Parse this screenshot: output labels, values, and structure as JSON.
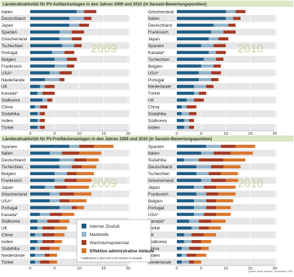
{
  "colors": {
    "zins": "#1f5d86",
    "markt": "#93b4c9",
    "wachstum": "#a33a24",
    "ablaeufe": "#d9752c",
    "header_bg": "#d9e6c4",
    "row_shade": "#e6e6e6",
    "year_text": "#c9d49f"
  },
  "titles": {
    "top": "Länderattraktivität für PV-Aufdachanlagen in den Jahren 2009 und 2010 (in Sarasin-Bewertungspunkten)",
    "bottom": "Länderattraktivität für PV-Freiflächenanlagen in den Jahren 2009 und 2010 (in Sarasin-Bewertungspunkten)"
  },
  "legend": {
    "items": [
      "Interner Zinsfuß",
      "Marktreife",
      "Wachstumspotenzial",
      "Effektive administrative Abläufe"
    ],
    "note": "* Kalifornien in den USA und Ontario in Kanada"
  },
  "source": "Quelle: Bank Sarasin, November 2009",
  "chart_data": [
    {
      "type": "bar",
      "stacked": true,
      "orientation": "horizontal",
      "panel": "Aufdachanlagen",
      "year_label": "2009",
      "xlim": [
        0,
        20
      ],
      "xticks": [
        "0",
        "5",
        "10",
        "15",
        "20"
      ],
      "grid": true,
      "categories": [
        "Italien",
        "Deutschland",
        "Japan",
        "Spanien",
        "Griechenland",
        "Tschechien",
        "Portugal",
        "Belgien",
        "Frankreich",
        "USA*",
        "Niederlande",
        "UK",
        "Kanada*",
        "Südkorea",
        "China",
        "Südafrika",
        "Indien",
        "Türkei"
      ],
      "series": [
        {
          "name": "Interner Zinsfuß",
          "values": [
            9.5,
            8,
            8,
            6,
            6,
            6.5,
            4.5,
            5,
            5,
            4,
            3,
            2,
            1.5,
            2.5,
            1,
            1.5,
            1.5,
            1.5
          ]
        },
        {
          "name": "Marktreife",
          "values": [
            1.5,
            3,
            2,
            2.5,
            2.5,
            2.5,
            2.5,
            2.5,
            2.5,
            2,
            3,
            1,
            1,
            1,
            1,
            0.5,
            0.5,
            0.5
          ]
        },
        {
          "name": "Wachstumspotenzial",
          "values": [
            2.5,
            1.5,
            2,
            2.5,
            2,
            1.5,
            2,
            2,
            1.5,
            2.5,
            1,
            2,
            2.5,
            1,
            1.5,
            1,
            1,
            1
          ]
        },
        {
          "name": "Effektive administrative Abläufe",
          "values": [
            0,
            0,
            0,
            0,
            0,
            0,
            0,
            0,
            0,
            0,
            0,
            0,
            0,
            0,
            0,
            0,
            0,
            0
          ]
        }
      ]
    },
    {
      "type": "bar",
      "stacked": true,
      "orientation": "horizontal",
      "panel": "Aufdachanlagen",
      "year_label": "2010",
      "xlim": [
        0,
        20
      ],
      "xticks": [
        "0",
        "5",
        "10",
        "15",
        "20"
      ],
      "grid": true,
      "categories": [
        "Griechenland",
        "Italien",
        "Deutschland",
        "Frankreich",
        "Japan",
        "Spanien",
        "Kanada*",
        "Tschechien",
        "Belgien",
        "USA*",
        "Portugal",
        "Niederlande",
        "Türkei",
        "UK",
        "China",
        "Südafrika",
        "Südkorea",
        "Indien"
      ],
      "series": [
        {
          "name": "Interner Zinsfuß",
          "values": [
            10,
            10,
            7.5,
            7,
            6.5,
            5,
            6.5,
            5.5,
            5,
            4.5,
            4.5,
            3.5,
            3.5,
            2,
            1,
            1,
            1.5,
            1.5
          ]
        },
        {
          "name": "Marktreife",
          "values": [
            2,
            1.5,
            3,
            2.5,
            2,
            2.5,
            1.5,
            2.5,
            2.5,
            2.5,
            2.5,
            2.5,
            1,
            1.5,
            1,
            1.5,
            1,
            1
          ]
        },
        {
          "name": "Wachstumspotenzial",
          "values": [
            2,
            1.5,
            1.5,
            2.5,
            2,
            2.5,
            2,
            1.5,
            1.5,
            2,
            1.5,
            1.5,
            1.5,
            2,
            2,
            1.5,
            1,
            1
          ]
        },
        {
          "name": "Effektive administrative Abläufe",
          "values": [
            0,
            0,
            0,
            0,
            0,
            0,
            0,
            0,
            0,
            0,
            0,
            0,
            0,
            0,
            0,
            0,
            0,
            0
          ]
        }
      ]
    },
    {
      "type": "bar",
      "stacked": true,
      "orientation": "horizontal",
      "panel": "Freiflächenanlagen",
      "year_label": "2009",
      "xlim": [
        0,
        20
      ],
      "xticks": [
        "0",
        "5",
        "10",
        "15",
        "20"
      ],
      "grid": true,
      "categories": [
        "Spanien",
        "Italien",
        "Deutschland",
        "Tschechien",
        "Belgien",
        "Frankreich",
        "Japan",
        "Griechenland",
        "USA*",
        "Portugal",
        "Kanada*",
        "Südkorea",
        "UK",
        "China",
        "Indien",
        "Südafrika",
        "Niederlande",
        "Türkei"
      ],
      "series": [
        {
          "name": "Interner Zinsfuß",
          "values": [
            8,
            4,
            6,
            6,
            5,
            5,
            3,
            4,
            4,
            6,
            2,
            1.5,
            1.5,
            1,
            1.5,
            1,
            1,
            1
          ]
        },
        {
          "name": "Marktreife",
          "values": [
            2,
            2.5,
            3,
            2.5,
            2.5,
            2,
            2,
            2,
            2,
            2.5,
            2,
            2,
            1,
            1.5,
            1,
            1,
            2,
            1
          ]
        },
        {
          "name": "Wachstumspotenzial",
          "values": [
            3,
            3.5,
            2.5,
            2,
            2,
            2.5,
            2.5,
            3,
            2,
            1,
            2.5,
            2.5,
            2.5,
            2.5,
            2.5,
            2,
            1,
            2
          ]
        },
        {
          "name": "Effektive administrative Abläufe",
          "values": [
            4,
            4.5,
            2.5,
            3,
            3.5,
            3,
            4.5,
            3.5,
            3.5,
            1.5,
            2.5,
            2,
            2.5,
            2,
            1.5,
            2,
            1.5,
            1.5
          ]
        }
      ]
    },
    {
      "type": "bar",
      "stacked": true,
      "orientation": "horizontal",
      "panel": "Freiflächenanlagen",
      "year_label": "2010",
      "xlim": [
        0,
        20
      ],
      "xticks": [
        "0",
        "5",
        "10",
        "15",
        "20"
      ],
      "grid": true,
      "categories": [
        "Spanien",
        "Italien",
        "Südafrika",
        "Deutschland",
        "Tschechien",
        "Griechenland",
        "Japan",
        "Frankreich",
        "Belgien",
        "Portugal",
        "USA*",
        "Kanada*",
        "Türkei",
        "UK",
        "Südkorea",
        "China",
        "Indien",
        "Niederlande"
      ],
      "series": [
        {
          "name": "Interner Zinsfuß",
          "values": [
            6,
            5,
            1.5,
            4,
            4,
            5,
            3.5,
            4,
            3.5,
            3.5,
            3.5,
            2.5,
            3,
            1.5,
            1.5,
            1,
            1,
            1
          ]
        },
        {
          "name": "Marktreife",
          "values": [
            3,
            2.5,
            3,
            3,
            2.5,
            2,
            2,
            2,
            2.5,
            2.5,
            2,
            2,
            1.5,
            1.5,
            1.5,
            1.5,
            1,
            1.5
          ]
        },
        {
          "name": "Wachstumspotenzial",
          "values": [
            3,
            3.5,
            5,
            2.5,
            2.5,
            3,
            2.5,
            2.5,
            2,
            2,
            2.5,
            2.5,
            2,
            2.5,
            2,
            2.5,
            2,
            1
          ]
        },
        {
          "name": "Effektive administrative Abläufe",
          "values": [
            4,
            4.5,
            4.5,
            3.5,
            3.5,
            2.5,
            4,
            3.5,
            3.5,
            3,
            3,
            3,
            2.5,
            2.5,
            2,
            1.5,
            2,
            1.5
          ]
        }
      ]
    }
  ]
}
